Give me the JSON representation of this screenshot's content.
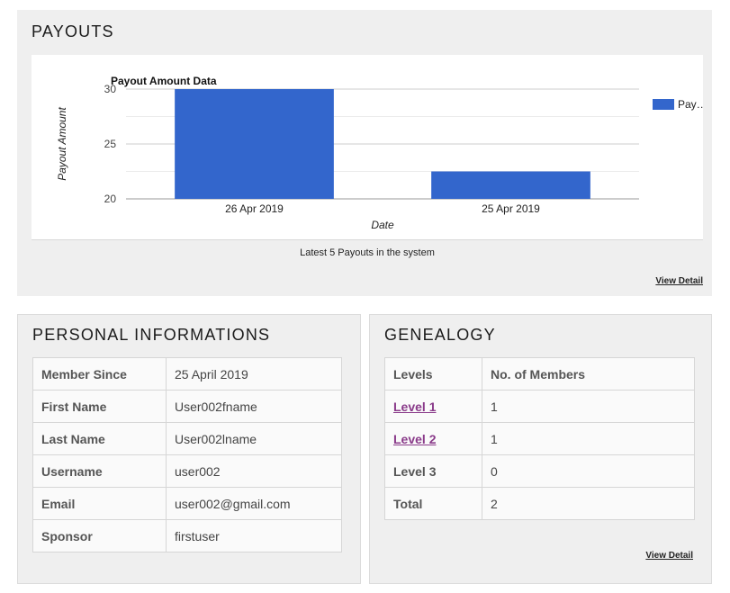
{
  "payouts": {
    "title": "PAYOUTS",
    "caption": "Latest 5 Payouts in the system",
    "view_detail": "View Detail"
  },
  "chart_data": {
    "type": "bar",
    "title": "Payout Amount Data",
    "xlabel": "Date",
    "ylabel": "Payout Amount",
    "categories": [
      "26 Apr 2019",
      "25 Apr 2019"
    ],
    "series": [
      {
        "name": "Pay…",
        "values": [
          30,
          22.5
        ],
        "color": "#3366cc"
      }
    ],
    "ylim": [
      20,
      30
    ],
    "yticks": [
      "30",
      "25",
      "20"
    ],
    "ytick_values": [
      30,
      25,
      20
    ],
    "minor_grid_values": [
      27.5,
      22.5
    ],
    "grid": true,
    "legend": "right"
  },
  "personal": {
    "title": "PERSONAL INFORMATIONS",
    "rows": [
      {
        "label": "Member Since",
        "value": "25 April 2019"
      },
      {
        "label": "First Name",
        "value": "User002fname"
      },
      {
        "label": "Last Name",
        "value": "User002lname"
      },
      {
        "label": "Username",
        "value": "user002"
      },
      {
        "label": "Email",
        "value": "user002@gmail.com"
      },
      {
        "label": "Sponsor",
        "value": "firstuser"
      }
    ]
  },
  "genealogy": {
    "title": "GENEALOGY",
    "headers": [
      "Levels",
      "No. of Members"
    ],
    "rows": [
      {
        "level": "Level 1",
        "count": "1"
      },
      {
        "level": "Level 2",
        "count": "1"
      },
      {
        "level": "Level 3",
        "count": "0"
      },
      {
        "level": "Total",
        "count": "2"
      }
    ],
    "view_detail": "View Detail",
    "link_color": "#8a3b8a"
  }
}
